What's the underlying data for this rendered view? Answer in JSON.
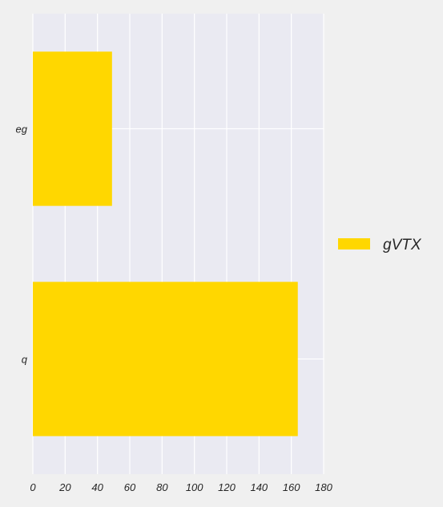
{
  "chart_data": {
    "type": "bar",
    "orientation": "horizontal",
    "categories": [
      "eg",
      "q"
    ],
    "series": [
      {
        "name": "gVTX",
        "values": [
          49,
          164
        ]
      }
    ],
    "title": "",
    "xlabel": "",
    "ylabel": "",
    "xlim": [
      0,
      180
    ],
    "xticks": [
      0,
      20,
      40,
      60,
      80,
      100,
      120,
      140,
      160,
      180
    ],
    "grid": true,
    "legend_position": "right"
  },
  "colors": {
    "bar": "#ffd700",
    "plot_background": "#eaeaf2",
    "page_background": "#f0f0f0",
    "grid": "#ffffff",
    "text": "#262626"
  }
}
